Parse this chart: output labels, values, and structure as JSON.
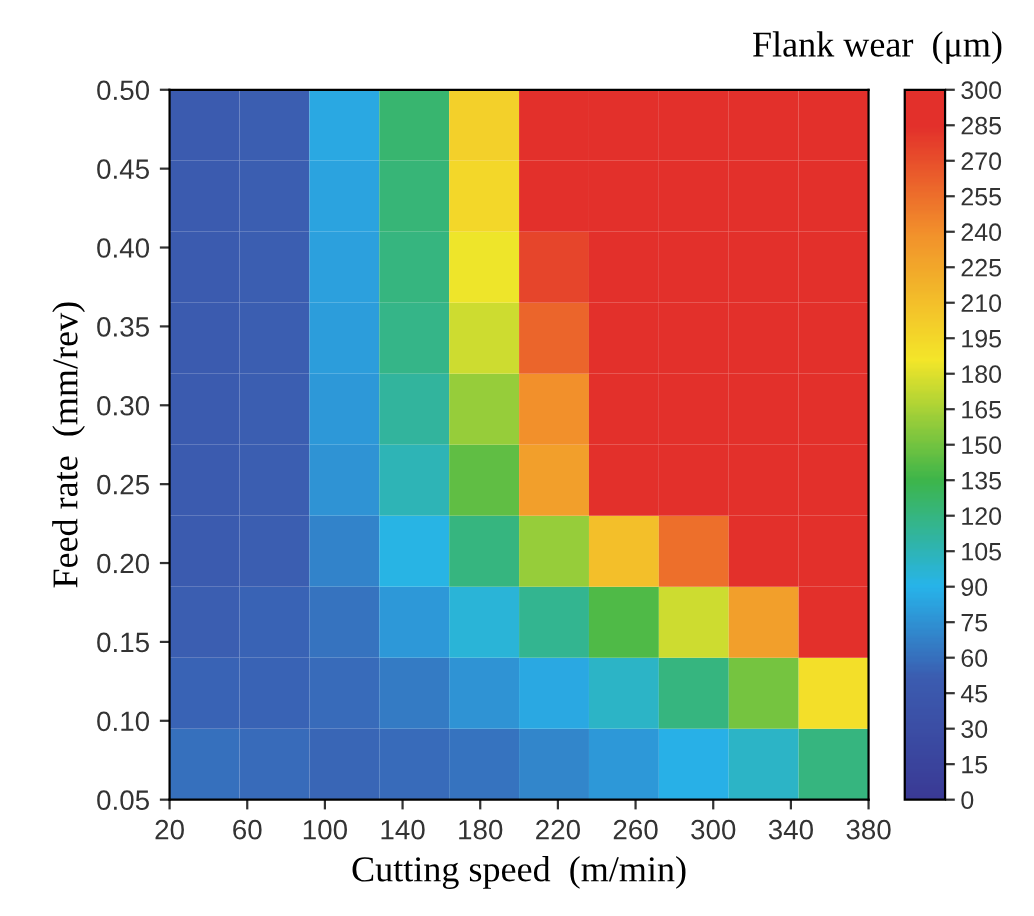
{
  "chart_data": {
    "type": "heatmap",
    "xlabel": "Cutting speed  (m/min)",
    "ylabel": "Feed rate  (mm/rev)",
    "clabel": "Flank wear  (μm)",
    "xlim": [
      20,
      380
    ],
    "xticks": [
      20,
      60,
      100,
      140,
      180,
      220,
      260,
      300,
      340,
      380
    ],
    "ylim": [
      0.05,
      0.5
    ],
    "yticks": [
      {
        "value": 0.05,
        "label": "0.05"
      },
      {
        "value": 0.1,
        "label": "0.10"
      },
      {
        "value": 0.15,
        "label": "0.15"
      },
      {
        "value": 0.2,
        "label": "0.20"
      },
      {
        "value": 0.25,
        "label": "0.25"
      },
      {
        "value": 0.3,
        "label": "0.30"
      },
      {
        "value": 0.35,
        "label": "0.35"
      },
      {
        "value": 0.4,
        "label": "0.40"
      },
      {
        "value": 0.45,
        "label": "0.45"
      },
      {
        "value": 0.5,
        "label": "0.50"
      }
    ],
    "clim": [
      0,
      300
    ],
    "cticks": [
      0,
      15,
      30,
      45,
      60,
      75,
      90,
      105,
      120,
      135,
      150,
      165,
      180,
      195,
      210,
      225,
      240,
      255,
      270,
      285,
      300
    ],
    "cells": [
      [
        50,
        52,
        85,
        125,
        200,
        290,
        300,
        300,
        300,
        300
      ],
      [
        50,
        52,
        83,
        122,
        195,
        285,
        300,
        300,
        300,
        300
      ],
      [
        50,
        52,
        82,
        120,
        185,
        275,
        300,
        300,
        300,
        300
      ],
      [
        50,
        52,
        80,
        118,
        175,
        260,
        300,
        300,
        300,
        300
      ],
      [
        50,
        52,
        78,
        112,
        160,
        240,
        295,
        300,
        300,
        300
      ],
      [
        50,
        52,
        75,
        105,
        145,
        230,
        295,
        300,
        300,
        300
      ],
      [
        50,
        52,
        68,
        92,
        120,
        160,
        210,
        255,
        290,
        300
      ],
      [
        52,
        54,
        62,
        78,
        95,
        115,
        140,
        175,
        230,
        285
      ],
      [
        55,
        55,
        58,
        65,
        75,
        85,
        100,
        120,
        150,
        190
      ],
      [
        60,
        58,
        56,
        58,
        62,
        70,
        78,
        88,
        100,
        120
      ]
    ]
  }
}
